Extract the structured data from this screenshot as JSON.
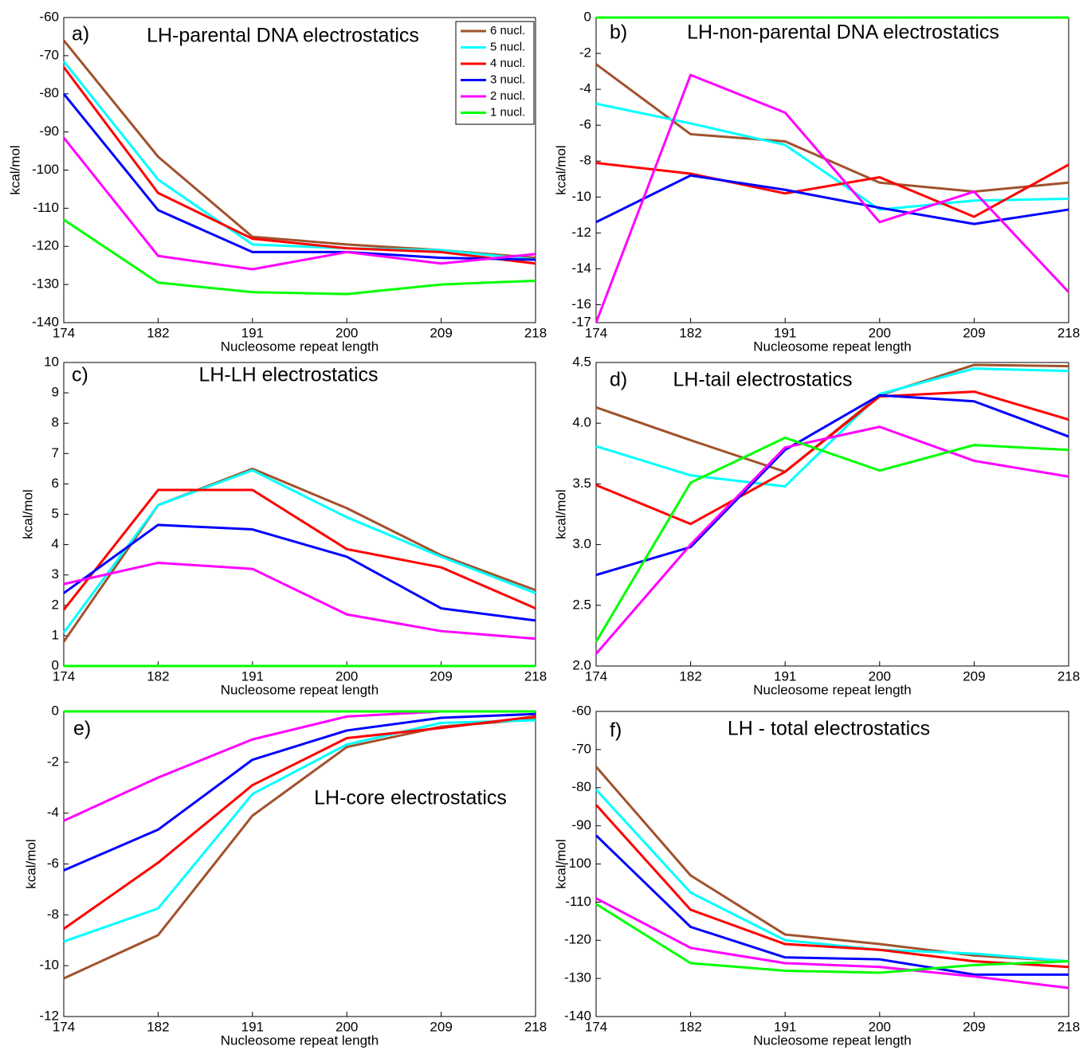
{
  "chart_data": [
    {
      "type": "line",
      "label": "a)",
      "title": "LH-parental DNA electrostatics",
      "x_label": "Nucleosome repeat length",
      "y_label": "kcal/mol",
      "categories": [
        "174",
        "182",
        "191",
        "200",
        "209",
        "218"
      ],
      "ylim": [
        -140,
        -60
      ],
      "yticks": [
        -140,
        -130,
        -120,
        -110,
        -100,
        -90,
        -80,
        -70,
        -60
      ],
      "legend": "upper right",
      "series": [
        {
          "name": "6 nucl.",
          "color": "#a0522d",
          "values": [
            -66,
            -96.5,
            -117.5,
            -119.5,
            -121,
            -123
          ]
        },
        {
          "name": "5 nucl.",
          "color": "#00ffff",
          "values": [
            -71.5,
            -102.5,
            -119.5,
            -120.5,
            -121,
            -123.5
          ]
        },
        {
          "name": "4 nucl.",
          "color": "#ff0000",
          "values": [
            -73,
            -106,
            -118,
            -120.5,
            -121.5,
            -124.5
          ]
        },
        {
          "name": "3 nucl.",
          "color": "#0000ff",
          "values": [
            -80,
            -110.5,
            -121.5,
            -121.5,
            -123,
            -123.5
          ]
        },
        {
          "name": "2 nucl.",
          "color": "#ff00ff",
          "values": [
            -91.5,
            -122.5,
            -126,
            -121.5,
            -124.5,
            -122
          ]
        },
        {
          "name": "1 nucl.",
          "color": "#00ff00",
          "values": [
            -113,
            -129.5,
            -132,
            -132.5,
            -130,
            -129
          ]
        }
      ]
    },
    {
      "type": "line",
      "label": "b)",
      "title": "LH-non-parental DNA electrostatics",
      "x_label": "Nucleosome repeat length",
      "y_label": "kcal/mol",
      "categories": [
        "174",
        "182",
        "191",
        "200",
        "209",
        "218"
      ],
      "ylim": [
        -17,
        0
      ],
      "yticks": [
        -17,
        -16,
        -14,
        -12,
        -10,
        -8,
        -6,
        -4,
        -2,
        0
      ],
      "series": [
        {
          "color": "#a0522d",
          "values": [
            -2.6,
            -6.5,
            -6.9,
            -9.2,
            -9.7,
            -9.2
          ]
        },
        {
          "color": "#00ffff",
          "values": [
            -4.8,
            -5.9,
            -7.1,
            -10.7,
            -10.2,
            -10.1
          ]
        },
        {
          "color": "#ff0000",
          "values": [
            -8.1,
            -8.7,
            -9.8,
            -8.9,
            -11.1,
            -8.2
          ]
        },
        {
          "color": "#0000ff",
          "values": [
            -11.4,
            -8.8,
            -9.6,
            -10.6,
            -11.5,
            -10.7
          ]
        },
        {
          "color": "#ff00ff",
          "values": [
            -17,
            -3.2,
            -5.3,
            -11.4,
            -9.7,
            -15.3
          ]
        },
        {
          "color": "#00ff00",
          "values": [
            0,
            0,
            0,
            0,
            0,
            0
          ]
        }
      ]
    },
    {
      "type": "line",
      "label": "c)",
      "title": "LH-LH electrostatics",
      "x_label": "Nucleosome repeat length",
      "y_label": "kcal/mol",
      "categories": [
        "174",
        "182",
        "191",
        "200",
        "209",
        "218"
      ],
      "ylim": [
        0,
        10
      ],
      "yticks": [
        0,
        1,
        2,
        3,
        4,
        5,
        6,
        7,
        8,
        9,
        10
      ],
      "series": [
        {
          "color": "#a0522d",
          "values": [
            0.8,
            5.3,
            6.5,
            5.2,
            3.65,
            2.5
          ]
        },
        {
          "color": "#00ffff",
          "values": [
            1.1,
            5.3,
            6.45,
            4.9,
            3.6,
            2.4
          ]
        },
        {
          "color": "#ff0000",
          "values": [
            1.85,
            5.8,
            5.8,
            3.85,
            3.25,
            1.9
          ]
        },
        {
          "color": "#0000ff",
          "values": [
            2.4,
            4.65,
            4.5,
            3.6,
            1.9,
            1.5
          ]
        },
        {
          "color": "#ff00ff",
          "values": [
            2.7,
            3.4,
            3.2,
            1.7,
            1.15,
            0.9
          ]
        },
        {
          "color": "#00ff00",
          "values": [
            0,
            0,
            0,
            0,
            0,
            0
          ]
        }
      ]
    },
    {
      "type": "line",
      "label": "d)",
      "title": "LH-tail electrostatics",
      "x_label": "Nucleosome repeat length",
      "y_label": "kcal/mol",
      "categories": [
        "174",
        "182",
        "191",
        "200",
        "209",
        "218"
      ],
      "ylim": [
        2,
        4.5
      ],
      "yticks": [
        {
          "value": 2,
          "label": "2.0"
        },
        2.5,
        {
          "value": 3,
          "label": "3.0"
        },
        3.5,
        {
          "value": 4,
          "label": "4.0"
        },
        4.5
      ],
      "series": [
        {
          "color": "#a0522d",
          "values": [
            4.13,
            3.86,
            3.6,
            4.23,
            4.48,
            4.47
          ]
        },
        {
          "color": "#00ffff",
          "values": [
            3.81,
            3.57,
            3.48,
            4.24,
            4.45,
            4.43
          ]
        },
        {
          "color": "#ff0000",
          "values": [
            3.49,
            3.17,
            3.6,
            4.22,
            4.26,
            4.03
          ]
        },
        {
          "color": "#0000ff",
          "values": [
            2.75,
            2.98,
            3.78,
            4.23,
            4.18,
            3.89
          ]
        },
        {
          "color": "#ff00ff",
          "values": [
            2.1,
            3.0,
            3.8,
            3.97,
            3.69,
            3.56
          ]
        },
        {
          "color": "#00ff00",
          "values": [
            2.2,
            3.51,
            3.88,
            3.61,
            3.82,
            3.78
          ]
        }
      ]
    },
    {
      "type": "line",
      "label": "e)",
      "title": "LH-core electrostatics",
      "x_label": "Nucleosome repeat length",
      "y_label": "kcal/mol",
      "categories": [
        "174",
        "182",
        "191",
        "200",
        "209",
        "218"
      ],
      "ylim": [
        -12,
        0
      ],
      "yticks": [
        -12,
        -10,
        -8,
        -6,
        -4,
        -2,
        0
      ],
      "series": [
        {
          "color": "#a0522d",
          "values": [
            -10.5,
            -8.8,
            -4.1,
            -1.4,
            -0.6,
            -0.3
          ]
        },
        {
          "color": "#00ffff",
          "values": [
            -9.05,
            -7.75,
            -3.25,
            -1.3,
            -0.45,
            -0.35
          ]
        },
        {
          "color": "#ff0000",
          "values": [
            -8.55,
            -5.95,
            -2.9,
            -1.05,
            -0.65,
            -0.2
          ]
        },
        {
          "color": "#0000ff",
          "values": [
            -6.25,
            -4.65,
            -1.9,
            -0.75,
            -0.25,
            -0.1
          ]
        },
        {
          "color": "#ff00ff",
          "values": [
            -4.3,
            -2.6,
            -1.1,
            -0.2,
            0,
            0
          ]
        },
        {
          "color": "#00ff00",
          "values": [
            0,
            0,
            0,
            0,
            0,
            0
          ]
        }
      ]
    },
    {
      "type": "line",
      "label": "f)",
      "title": "LH - total electrostatics",
      "x_label": "Nucleosome repeat length",
      "y_label": "kcal/mol",
      "categories": [
        "174",
        "182",
        "191",
        "200",
        "209",
        "218"
      ],
      "ylim": [
        -140,
        -60
      ],
      "yticks": [
        -140,
        -130,
        -120,
        -110,
        -100,
        -90,
        -80,
        -70,
        -60
      ],
      "series": [
        {
          "color": "#a0522d",
          "values": [
            -74.5,
            -103,
            -118.5,
            -121,
            -124,
            -125.5
          ]
        },
        {
          "color": "#00ffff",
          "values": [
            -80.5,
            -107.5,
            -120,
            -122.5,
            -123.5,
            -125.5
          ]
        },
        {
          "color": "#ff0000",
          "values": [
            -84.5,
            -112,
            -121,
            -122.5,
            -125.5,
            -127
          ]
        },
        {
          "color": "#0000ff",
          "values": [
            -92.5,
            -116.5,
            -124.5,
            -125,
            -129,
            -129
          ]
        },
        {
          "color": "#ff00ff",
          "values": [
            -109,
            -122,
            -126,
            -127,
            -129.5,
            -132.5
          ]
        },
        {
          "color": "#00ff00",
          "values": [
            -110.5,
            -126,
            -128,
            -128.5,
            -126.5,
            -125.5
          ]
        }
      ]
    }
  ]
}
